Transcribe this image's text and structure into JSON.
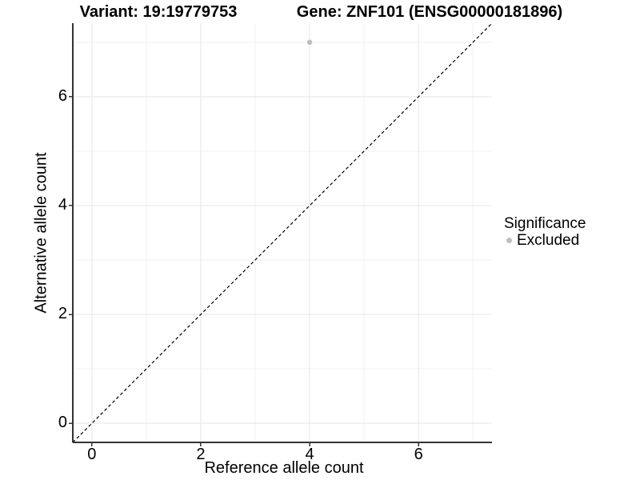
{
  "chart_data": {
    "type": "scatter",
    "title_left": "Variant: 19:19779753",
    "title_right": "Gene: ZNF101 (ENSG00000181896)",
    "xlabel": "Reference allele count",
    "ylabel": "Alternative allele count",
    "xlim": [
      -0.35,
      7.35
    ],
    "ylim": [
      -0.35,
      7.35
    ],
    "x_major_ticks": [
      0,
      2,
      4,
      6
    ],
    "y_major_ticks": [
      0,
      2,
      4,
      6
    ],
    "x_minor_ticks": [
      1,
      3,
      5,
      7
    ],
    "y_minor_ticks": [
      1,
      3,
      5,
      7
    ],
    "grid": "on",
    "identity_line": {
      "style": "dashed",
      "color": "#000000",
      "from": [
        -0.35,
        -0.35
      ],
      "to": [
        7.35,
        7.35
      ]
    },
    "series": [
      {
        "name": "Excluded",
        "color": "#bebebe",
        "points": [
          {
            "x": 4,
            "y": 7
          }
        ]
      }
    ],
    "legend": {
      "title": "Significance",
      "position": "right",
      "items": [
        {
          "label": "Excluded",
          "color": "#bebebe"
        }
      ]
    },
    "colors": {
      "grid_major": "#e5e5e5",
      "grid_minor": "#f1f1f1",
      "axis_line": "#333333",
      "tick_mark": "#333333",
      "text": "#000000"
    }
  }
}
